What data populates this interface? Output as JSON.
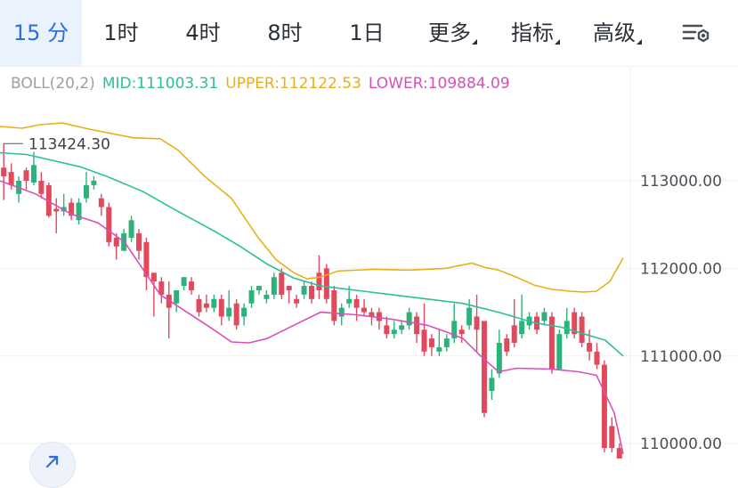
{
  "tabs": [
    {
      "label": "15 分",
      "active": true
    },
    {
      "label": "1时"
    },
    {
      "label": "4时"
    },
    {
      "label": "8时"
    },
    {
      "label": "1日"
    },
    {
      "label": "更多",
      "dropdown": true
    },
    {
      "label": "指标",
      "dropdown": true
    },
    {
      "label": "高级",
      "dropdown": true
    }
  ],
  "settings_icon": "chart-settings-icon",
  "boll": {
    "name": "BOLL(20,2)",
    "mid_label": "MID:111003.31",
    "upper_label": "UPPER:112122.53",
    "lower_label": "LOWER:109884.09",
    "colors": {
      "name": "#9aa0a8",
      "mid": "#2bbf9a",
      "upper": "#e8b018",
      "lower": "#d94fb8"
    }
  },
  "colors": {
    "up": "#2db37a",
    "down": "#e04a5c",
    "accent": "#2a6fe0"
  },
  "chart_data": {
    "type": "candlestick",
    "y_ticks": [
      {
        "value": 113000,
        "label": "113000.00"
      },
      {
        "value": 112000,
        "label": "112000.00"
      },
      {
        "value": 111000,
        "label": "111000.00"
      },
      {
        "value": 110000,
        "label": "110000.00"
      }
    ],
    "ylim": [
      109830,
      114100
    ],
    "grid": true,
    "high_label": {
      "value": 113424.3,
      "text": "113424.30"
    },
    "candles": [
      [
        113150,
        113050,
        113430,
        112780
      ],
      [
        113100,
        112950,
        113200,
        112900
      ],
      [
        112850,
        113000,
        113050,
        112750
      ],
      [
        113120,
        113000,
        113150,
        112900
      ],
      [
        112980,
        113180,
        113330,
        112950
      ],
      [
        113000,
        112850,
        113100,
        112800
      ],
      [
        112950,
        112600,
        112980,
        112580
      ],
      [
        112680,
        112650,
        112800,
        112400
      ],
      [
        112650,
        112700,
        112850,
        112600
      ],
      [
        112750,
        112600,
        112800,
        112550
      ],
      [
        112550,
        112750,
        112800,
        112500
      ],
      [
        112800,
        112950,
        113100,
        112750
      ],
      [
        112950,
        113000,
        113050,
        112900
      ],
      [
        112800,
        112700,
        112850,
        112600
      ],
      [
        112700,
        112300,
        112750,
        112250
      ],
      [
        112350,
        112250,
        112400,
        112100
      ],
      [
        112200,
        112400,
        112450,
        112200
      ],
      [
        112350,
        112550,
        112600,
        112300
      ],
      [
        112400,
        112200,
        112450,
        112100
      ],
      [
        112300,
        111900,
        112350,
        111750
      ],
      [
        111950,
        111850,
        111950,
        111450
      ],
      [
        111850,
        111700,
        111900,
        111600
      ],
      [
        111700,
        111550,
        111850,
        111200
      ],
      [
        111600,
        111750,
        111750,
        111500
      ],
      [
        111800,
        111900,
        111900,
        111750
      ],
      [
        111850,
        111750,
        111900,
        111700
      ],
      [
        111650,
        111500,
        111700,
        111450
      ],
      [
        111600,
        111550,
        111700,
        111500
      ],
      [
        111550,
        111650,
        111700,
        111500
      ],
      [
        111650,
        111450,
        111700,
        111350
      ],
      [
        111450,
        111550,
        111750,
        111400
      ],
      [
        111600,
        111350,
        111650,
        111300
      ],
      [
        111450,
        111550,
        111600,
        111350
      ],
      [
        111600,
        111750,
        111800,
        111550
      ],
      [
        111750,
        111800,
        111800,
        111700
      ],
      [
        111650,
        111700,
        111750,
        111600
      ],
      [
        111700,
        111900,
        111950,
        111650
      ],
      [
        111950,
        111700,
        112000,
        111650
      ],
      [
        111800,
        111750,
        111800,
        111600
      ],
      [
        111650,
        111600,
        111700,
        111550
      ],
      [
        111700,
        111800,
        111850,
        111650
      ],
      [
        111800,
        111650,
        111850,
        111600
      ],
      [
        111950,
        111750,
        112150,
        111650
      ],
      [
        112000,
        111650,
        112050,
        111600
      ],
      [
        111750,
        111400,
        111800,
        111350
      ],
      [
        111450,
        111550,
        111600,
        111350
      ],
      [
        111600,
        111650,
        111800,
        111550
      ],
      [
        111650,
        111550,
        111700,
        111400
      ],
      [
        111550,
        111500,
        111650,
        111450
      ],
      [
        111500,
        111450,
        111550,
        111350
      ],
      [
        111500,
        111400,
        111550,
        111300
      ],
      [
        111350,
        111250,
        111450,
        111200
      ],
      [
        111250,
        111300,
        111400,
        111200
      ],
      [
        111300,
        111350,
        111400,
        111250
      ],
      [
        111350,
        111500,
        111550,
        111300
      ],
      [
        111450,
        111250,
        111500,
        111150
      ],
      [
        111300,
        111050,
        111600,
        111000
      ],
      [
        111200,
        111100,
        111250,
        111000
      ],
      [
        111050,
        111100,
        111300,
        111000
      ],
      [
        111100,
        111200,
        111250,
        111050
      ],
      [
        111200,
        111400,
        111600,
        111150
      ],
      [
        111300,
        111250,
        111350,
        111150
      ],
      [
        111350,
        111550,
        111650,
        111300
      ],
      [
        111450,
        111300,
        111700,
        111050
      ],
      [
        111400,
        110350,
        111400,
        110300
      ],
      [
        110600,
        110750,
        110850,
        110500
      ],
      [
        110800,
        111150,
        111300,
        110750
      ],
      [
        111200,
        111050,
        111250,
        111000
      ],
      [
        111350,
        111150,
        111650,
        111100
      ],
      [
        111250,
        111400,
        111700,
        111200
      ],
      [
        111350,
        111450,
        111500,
        111300
      ],
      [
        111450,
        111300,
        111500,
        111250
      ],
      [
        111400,
        111500,
        111550,
        111350
      ],
      [
        111450,
        110850,
        111500,
        110800
      ],
      [
        110850,
        111250,
        111300,
        110850
      ],
      [
        111250,
        111400,
        111550,
        111200
      ],
      [
        111500,
        111250,
        111550,
        111200
      ],
      [
        111450,
        111150,
        111500,
        111100
      ],
      [
        111150,
        111050,
        111300,
        110950
      ],
      [
        111050,
        110900,
        111150,
        110850
      ],
      [
        110900,
        109950,
        110950,
        109900
      ],
      [
        110200,
        109950,
        110300,
        109900
      ],
      [
        109950,
        109830,
        110000,
        109830
      ]
    ],
    "upper": [
      [
        0,
        113620
      ],
      [
        25,
        113600
      ],
      [
        45,
        113640
      ],
      [
        70,
        113660
      ],
      [
        100,
        113590
      ],
      [
        150,
        113490
      ],
      [
        180,
        113480
      ],
      [
        200,
        113350
      ],
      [
        230,
        113050
      ],
      [
        260,
        112800
      ],
      [
        290,
        112350
      ],
      [
        310,
        112100
      ],
      [
        330,
        111950
      ],
      [
        345,
        111880
      ],
      [
        360,
        111900
      ],
      [
        380,
        111970
      ],
      [
        420,
        111990
      ],
      [
        460,
        111980
      ],
      [
        500,
        112000
      ],
      [
        530,
        112060
      ],
      [
        545,
        112010
      ],
      [
        560,
        111980
      ],
      [
        580,
        111900
      ],
      [
        600,
        111810
      ],
      [
        620,
        111760
      ],
      [
        640,
        111740
      ],
      [
        655,
        111730
      ],
      [
        670,
        111740
      ],
      [
        685,
        111850
      ],
      [
        700,
        112120
      ]
    ],
    "mid": [
      [
        0,
        113320
      ],
      [
        30,
        113300
      ],
      [
        60,
        113230
      ],
      [
        90,
        113160
      ],
      [
        120,
        113050
      ],
      [
        160,
        112880
      ],
      [
        200,
        112650
      ],
      [
        240,
        112430
      ],
      [
        270,
        112250
      ],
      [
        300,
        112050
      ],
      [
        330,
        111890
      ],
      [
        360,
        111800
      ],
      [
        400,
        111750
      ],
      [
        440,
        111700
      ],
      [
        480,
        111650
      ],
      [
        520,
        111600
      ],
      [
        560,
        111500
      ],
      [
        600,
        111380
      ],
      [
        630,
        111330
      ],
      [
        650,
        111270
      ],
      [
        680,
        111180
      ],
      [
        700,
        111000
      ]
    ],
    "lower": [
      [
        0,
        113000
      ],
      [
        40,
        112850
      ],
      [
        80,
        112620
      ],
      [
        110,
        112520
      ],
      [
        140,
        112300
      ],
      [
        160,
        112000
      ],
      [
        180,
        111700
      ],
      [
        210,
        111500
      ],
      [
        240,
        111300
      ],
      [
        260,
        111160
      ],
      [
        280,
        111150
      ],
      [
        300,
        111200
      ],
      [
        330,
        111350
      ],
      [
        360,
        111500
      ],
      [
        400,
        111470
      ],
      [
        440,
        111420
      ],
      [
        480,
        111350
      ],
      [
        500,
        111280
      ],
      [
        520,
        111200
      ],
      [
        540,
        111000
      ],
      [
        560,
        110820
      ],
      [
        580,
        110860
      ],
      [
        620,
        110850
      ],
      [
        650,
        110820
      ],
      [
        670,
        110780
      ],
      [
        690,
        110350
      ],
      [
        700,
        109880
      ]
    ]
  },
  "fab_icon": "expand-arrow-icon"
}
